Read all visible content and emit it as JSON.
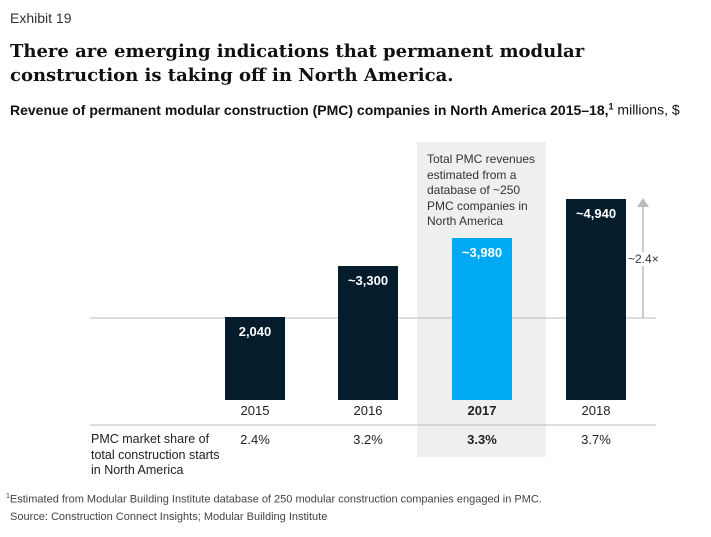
{
  "exhibit": "Exhibit 19",
  "title": "There are emerging indications that permanent modular construction is taking off in North America.",
  "subtitle": "Revenue of permanent modular construction (PMC) companies in North America 2015–18,",
  "subtitle_sup": "1",
  "subtitle_units": " millions, $",
  "note": "Total PMC revenues estimated from a database of ~250 PMC companies in North America",
  "multiplier": "~2.4×",
  "row_label": "PMC market share of total construction starts in North America",
  "footnote_sup": "1",
  "footnote": "Estimated from Modular Building Institute database of 250 modular construction companies engaged in PMC.",
  "source": "Source: Construction Connect Insights; Modular Building Institute",
  "colors": {
    "dark": "#051c2c",
    "highlight": "#00a9f4",
    "panel": "#efefef"
  },
  "chart_data": {
    "type": "bar",
    "categories": [
      "2015",
      "2016",
      "2017",
      "2018"
    ],
    "values": [
      2040,
      3300,
      3980,
      4940
    ],
    "value_labels": [
      "2,040",
      "~3,300",
      "~3,980",
      "~4,940"
    ],
    "share": [
      "2.4%",
      "3.2%",
      "3.3%",
      "3.7%"
    ],
    "highlighted": "2017",
    "ylim": [
      0,
      5000
    ],
    "unit": "millions, $"
  }
}
